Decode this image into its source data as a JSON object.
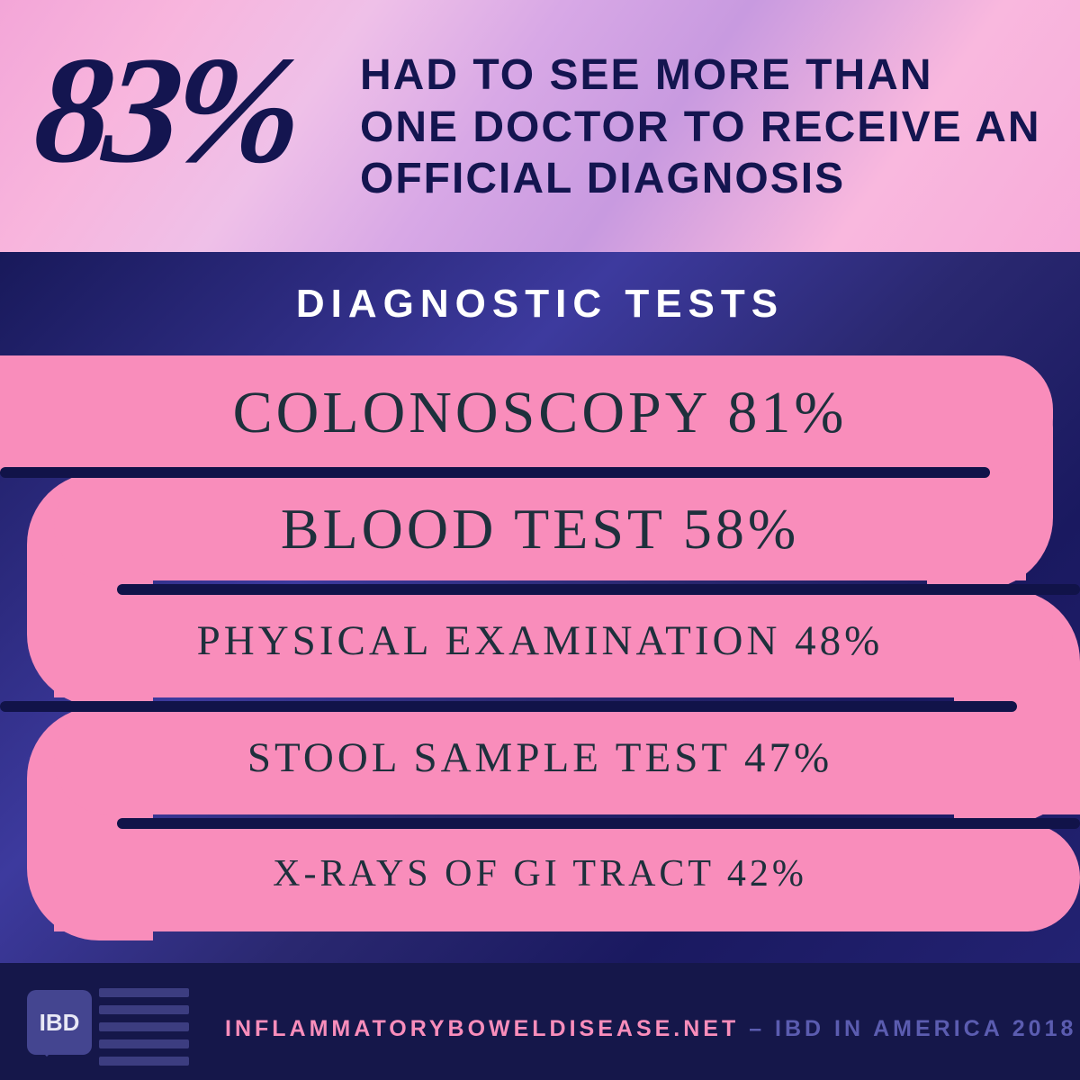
{
  "header": {
    "percent": "83%",
    "text": "HAD TO SEE MORE THAN ONE DOCTOR TO RECEIVE AN OFFICIAL DIAGNOSIS"
  },
  "section_title": "DIAGNOSTIC TESTS",
  "tests": [
    {
      "label": "COLONOSCOPY 81%"
    },
    {
      "label": "BLOOD TEST 58%"
    },
    {
      "label": "PHYSICAL EXAMINATION  48%"
    },
    {
      "label": "STOOL SAMPLE TEST 47%"
    },
    {
      "label": "X-RAYS OF GI TRACT 42%"
    }
  ],
  "footer": {
    "badge": "IBD",
    "site": "INFLAMMATORYBOWELDISEASE.NET",
    "rest": " – IBD IN AMERICA 2018"
  },
  "colors": {
    "dark_navy": "#141550",
    "pink": "#f98dbb",
    "blue_bg": "#1a1b52",
    "footer_bg": "#15174a",
    "divider": "#111349",
    "test_text": "#1e303c"
  }
}
